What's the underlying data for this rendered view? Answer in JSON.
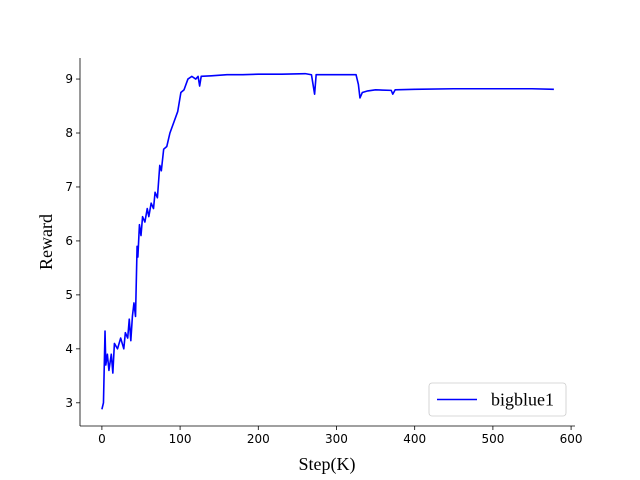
{
  "chart_data": {
    "type": "line",
    "x_label": "Step(K)",
    "y_label": "Reward",
    "xlim": [
      -28,
      605
    ],
    "ylim": [
      2.57,
      9.39
    ],
    "xticks": [
      0,
      100,
      200,
      300,
      400,
      500,
      600
    ],
    "yticks": [
      3,
      4,
      5,
      6,
      7,
      8,
      9
    ],
    "legend": "lower right",
    "x": [
      0,
      2,
      4,
      5,
      7,
      9,
      12,
      14,
      16,
      20,
      24,
      28,
      30,
      33,
      35,
      37,
      39,
      41,
      43,
      45,
      46,
      48,
      50,
      52,
      55,
      58,
      60,
      63,
      66,
      68,
      71,
      74,
      76,
      79,
      83,
      87,
      92,
      97,
      101,
      105,
      110,
      115,
      120,
      123,
      125,
      127,
      140,
      160,
      180,
      200,
      230,
      260,
      268,
      272,
      274,
      290,
      310,
      325,
      328,
      330,
      333,
      340,
      350,
      370,
      372,
      375,
      400,
      450,
      500,
      550,
      578
    ],
    "series": [
      {
        "name": "bigblue1",
        "color": "#0000ff",
        "values": [
          2.88,
          3.0,
          4.33,
          3.7,
          3.9,
          3.6,
          3.9,
          3.55,
          4.1,
          4.0,
          4.2,
          4.0,
          4.3,
          4.2,
          4.55,
          4.15,
          4.6,
          4.85,
          4.6,
          5.9,
          5.7,
          6.3,
          6.1,
          6.45,
          6.35,
          6.6,
          6.45,
          6.7,
          6.6,
          6.9,
          6.8,
          7.4,
          7.3,
          7.7,
          7.75,
          8.0,
          8.2,
          8.4,
          8.75,
          8.8,
          9.0,
          9.05,
          9.0,
          9.05,
          8.87,
          9.05,
          9.06,
          9.08,
          9.08,
          9.09,
          9.09,
          9.1,
          9.08,
          8.72,
          9.08,
          9.08,
          9.08,
          9.08,
          8.9,
          8.65,
          8.75,
          8.78,
          8.8,
          8.79,
          8.72,
          8.8,
          8.81,
          8.82,
          8.82,
          8.82,
          8.81
        ]
      }
    ]
  }
}
